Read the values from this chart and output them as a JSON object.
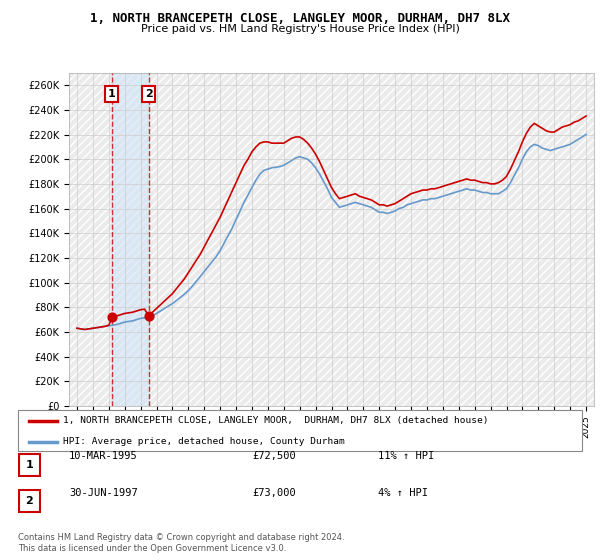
{
  "title": "1, NORTH BRANCEPETH CLOSE, LANGLEY MOOR, DURHAM, DH7 8LX",
  "subtitle": "Price paid vs. HM Land Registry's House Price Index (HPI)",
  "ylabel_ticks": [
    "£0",
    "£20K",
    "£40K",
    "£60K",
    "£80K",
    "£100K",
    "£120K",
    "£140K",
    "£160K",
    "£180K",
    "£200K",
    "£220K",
    "£240K",
    "£260K"
  ],
  "ylabel_values": [
    0,
    20000,
    40000,
    60000,
    80000,
    100000,
    120000,
    140000,
    160000,
    180000,
    200000,
    220000,
    240000,
    260000
  ],
  "xlim": [
    1992.5,
    2025.5
  ],
  "ylim": [
    0,
    270000
  ],
  "sale_color": "#cc0000",
  "hpi_color": "#6699cc",
  "hpi_fill_color": "#d0e4f7",
  "background_color": "#ffffff",
  "hatch_color": "#e0e0e0",
  "grid_color": "#cccccc",
  "legend_label_sale": "1, NORTH BRANCEPETH CLOSE, LANGLEY MOOR,  DURHAM, DH7 8LX (detached house)",
  "legend_label_hpi": "HPI: Average price, detached house, County Durham",
  "sale_points": [
    {
      "year": 1995.19,
      "value": 72500
    },
    {
      "year": 1997.5,
      "value": 73000
    }
  ],
  "sale_marker_labels": [
    "1",
    "2"
  ],
  "table_data": [
    [
      "1",
      "10-MAR-1995",
      "£72,500",
      "11% ↑ HPI"
    ],
    [
      "2",
      "30-JUN-1997",
      "£73,000",
      "4% ↑ HPI"
    ]
  ],
  "footnote": "Contains HM Land Registry data © Crown copyright and database right 2024.\nThis data is licensed under the Open Government Licence v3.0.",
  "xtick_years": [
    1993,
    1994,
    1995,
    1996,
    1997,
    1998,
    1999,
    2000,
    2001,
    2002,
    2003,
    2004,
    2005,
    2006,
    2007,
    2008,
    2009,
    2010,
    2011,
    2012,
    2013,
    2014,
    2015,
    2016,
    2017,
    2018,
    2019,
    2020,
    2021,
    2022,
    2023,
    2024,
    2025
  ],
  "hpi_data_x": [
    1993.0,
    1993.25,
    1993.5,
    1993.75,
    1994.0,
    1994.25,
    1994.5,
    1994.75,
    1995.0,
    1995.25,
    1995.5,
    1995.75,
    1996.0,
    1996.25,
    1996.5,
    1996.75,
    1997.0,
    1997.25,
    1997.5,
    1997.75,
    1998.0,
    1998.25,
    1998.5,
    1998.75,
    1999.0,
    1999.25,
    1999.5,
    1999.75,
    2000.0,
    2000.25,
    2000.5,
    2000.75,
    2001.0,
    2001.25,
    2001.5,
    2001.75,
    2002.0,
    2002.25,
    2002.5,
    2002.75,
    2003.0,
    2003.25,
    2003.5,
    2003.75,
    2004.0,
    2004.25,
    2004.5,
    2004.75,
    2005.0,
    2005.25,
    2005.5,
    2005.75,
    2006.0,
    2006.25,
    2006.5,
    2006.75,
    2007.0,
    2007.25,
    2007.5,
    2007.75,
    2008.0,
    2008.25,
    2008.5,
    2008.75,
    2009.0,
    2009.25,
    2009.5,
    2009.75,
    2010.0,
    2010.25,
    2010.5,
    2010.75,
    2011.0,
    2011.25,
    2011.5,
    2011.75,
    2012.0,
    2012.25,
    2012.5,
    2012.75,
    2013.0,
    2013.25,
    2013.5,
    2013.75,
    2014.0,
    2014.25,
    2014.5,
    2014.75,
    2015.0,
    2015.25,
    2015.5,
    2015.75,
    2016.0,
    2016.25,
    2016.5,
    2016.75,
    2017.0,
    2017.25,
    2017.5,
    2017.75,
    2018.0,
    2018.25,
    2018.5,
    2018.75,
    2019.0,
    2019.25,
    2019.5,
    2019.75,
    2020.0,
    2020.25,
    2020.5,
    2020.75,
    2021.0,
    2021.25,
    2021.5,
    2021.75,
    2022.0,
    2022.25,
    2022.5,
    2022.75,
    2023.0,
    2023.25,
    2023.5,
    2023.75,
    2024.0,
    2024.25,
    2024.5,
    2024.75,
    2025.0
  ],
  "hpi_data_y": [
    63000,
    62500,
    62000,
    62500,
    63000,
    63500,
    64000,
    64500,
    65000,
    65500,
    66000,
    67000,
    68000,
    68500,
    69000,
    70000,
    71000,
    71500,
    72000,
    73000,
    75000,
    77000,
    79000,
    81000,
    83000,
    85500,
    88000,
    90500,
    93500,
    97000,
    101000,
    105000,
    109000,
    113000,
    117000,
    121000,
    126000,
    132000,
    138000,
    144000,
    151000,
    158000,
    165000,
    171000,
    177000,
    183000,
    188000,
    191000,
    192000,
    193000,
    193500,
    194000,
    195000,
    197000,
    199000,
    201000,
    202000,
    201000,
    200000,
    197000,
    193000,
    188000,
    182000,
    176000,
    169000,
    165000,
    161000,
    162000,
    163000,
    164000,
    165000,
    164000,
    163000,
    162000,
    161000,
    159000,
    157000,
    157000,
    156000,
    157000,
    158000,
    160000,
    161000,
    163000,
    164000,
    165000,
    166000,
    167000,
    167000,
    168000,
    168000,
    169000,
    170000,
    171000,
    172000,
    173000,
    174000,
    175000,
    176000,
    175000,
    175000,
    174000,
    173000,
    173000,
    172000,
    172000,
    172000,
    174000,
    176000,
    181000,
    187000,
    193000,
    200000,
    206000,
    210000,
    212000,
    211000,
    209000,
    208000,
    207000,
    208000,
    209000,
    210000,
    211000,
    212000,
    214000,
    216000,
    218000,
    220000
  ],
  "sale_line_y": [
    63000,
    62500,
    62000,
    62500,
    63000,
    63500,
    64000,
    64500,
    65500,
    72500,
    73000,
    74000,
    75000,
    75500,
    76000,
    77000,
    78000,
    78500,
    73000,
    76000,
    79000,
    82000,
    85000,
    88000,
    91000,
    95000,
    99000,
    103000,
    108000,
    113000,
    118000,
    123000,
    129000,
    135000,
    141000,
    147000,
    153000,
    160000,
    167000,
    174000,
    181000,
    188000,
    195000,
    200000,
    206000,
    210000,
    213000,
    214000,
    214000,
    213000,
    213000,
    213000,
    213000,
    215000,
    217000,
    218000,
    218000,
    216000,
    213000,
    209000,
    204000,
    198000,
    191000,
    184000,
    177000,
    172000,
    168000,
    169000,
    170000,
    171000,
    172000,
    170000,
    169000,
    168000,
    167000,
    165000,
    163000,
    163000,
    162000,
    163000,
    164000,
    166000,
    168000,
    170000,
    172000,
    173000,
    174000,
    175000,
    175000,
    176000,
    176000,
    177000,
    178000,
    179000,
    180000,
    181000,
    182000,
    183000,
    184000,
    183000,
    183000,
    182000,
    181000,
    181000,
    180000,
    180000,
    181000,
    183000,
    186000,
    192000,
    199000,
    206000,
    214000,
    221000,
    226000,
    229000,
    227000,
    225000,
    223000,
    222000,
    222000,
    224000,
    226000,
    227000,
    228000,
    230000,
    231000,
    233000,
    235000
  ]
}
